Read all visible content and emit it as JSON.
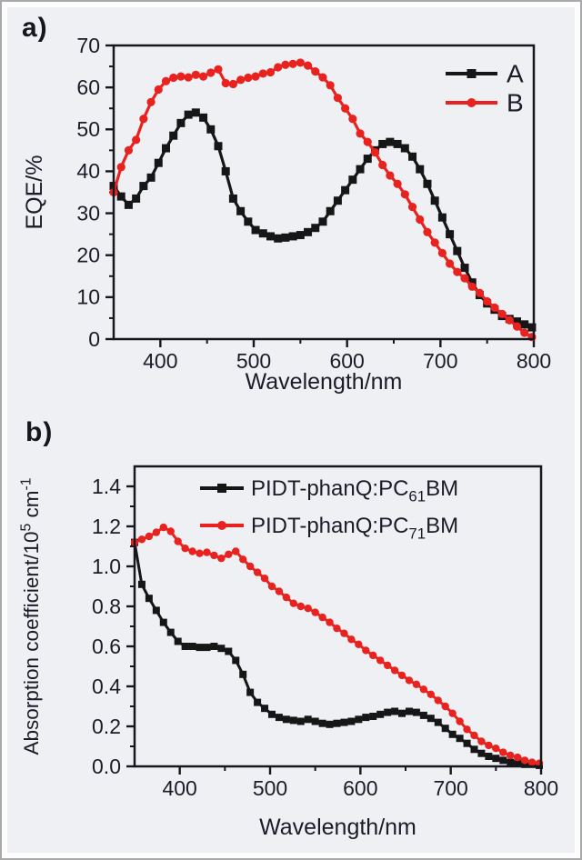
{
  "figure": {
    "panel_a_label": "a)",
    "panel_b_label": "b)"
  },
  "colors": {
    "background": "#eff0f4",
    "frame_border": "#a9a9a9",
    "axis": "#16161c",
    "text": "#1c1c28",
    "series_black": "#161616",
    "series_red": "#e8231f"
  },
  "chart_data": [
    {
      "type": "line",
      "panel": "a",
      "xlabel_parts": [
        {
          "t": "Wavelength/nm"
        }
      ],
      "ylabel_parts": [
        {
          "t": "EQE/%"
        }
      ],
      "xlim": [
        350,
        800
      ],
      "ylim": [
        0,
        70
      ],
      "xticks": [
        400,
        500,
        600,
        700,
        800
      ],
      "xtick_labels": [
        "400",
        "500",
        "600",
        "700",
        "800"
      ],
      "yticks": [
        0,
        10,
        20,
        30,
        40,
        50,
        60,
        70
      ],
      "ytick_labels": [
        "0",
        "10",
        "20",
        "30",
        "40",
        "50",
        "60",
        "70"
      ],
      "x_minor_step": 50,
      "y_minor_step": 5,
      "grid": false,
      "legend_position": "top-right",
      "series": [
        {
          "name": "A",
          "label_parts": [
            {
              "t": "A"
            }
          ],
          "color": "#161616",
          "marker": "square",
          "x": [
            350,
            358,
            366,
            374,
            382,
            390,
            398,
            406,
            414,
            422,
            430,
            438,
            446,
            454,
            462,
            470,
            478,
            486,
            494,
            502,
            510,
            518,
            526,
            534,
            542,
            550,
            558,
            566,
            574,
            582,
            590,
            598,
            606,
            614,
            622,
            630,
            638,
            646,
            654,
            662,
            670,
            678,
            686,
            694,
            702,
            710,
            718,
            726,
            734,
            742,
            750,
            758,
            766,
            774,
            782,
            790,
            798
          ],
          "y": [
            36.5,
            34,
            32,
            33.5,
            36.5,
            38.5,
            42,
            45.5,
            48.5,
            51.5,
            53.5,
            54,
            52.8,
            50,
            46,
            40,
            33.5,
            30.5,
            28,
            26,
            25.2,
            24.5,
            24,
            24.2,
            24.5,
            24.8,
            25.5,
            26.5,
            28,
            30.5,
            33,
            35.5,
            38,
            40.5,
            43,
            45,
            46.5,
            47,
            46.5,
            45.5,
            43.5,
            40.5,
            37,
            33,
            29,
            25,
            21,
            17,
            13.5,
            10.5,
            8.5,
            7,
            5.5,
            4.8,
            4.2,
            3.5,
            2.8
          ]
        },
        {
          "name": "B",
          "label_parts": [
            {
              "t": "B"
            }
          ],
          "color": "#e8231f",
          "marker": "circle",
          "x": [
            350,
            358,
            366,
            374,
            382,
            390,
            398,
            406,
            414,
            422,
            430,
            438,
            446,
            454,
            462,
            470,
            478,
            486,
            494,
            502,
            510,
            518,
            526,
            534,
            542,
            550,
            558,
            566,
            574,
            582,
            590,
            598,
            606,
            614,
            622,
            630,
            638,
            646,
            654,
            662,
            670,
            678,
            686,
            694,
            702,
            710,
            718,
            726,
            734,
            742,
            750,
            758,
            766,
            774,
            782,
            790,
            798
          ],
          "y": [
            35,
            41,
            45,
            47.5,
            52.5,
            56.5,
            59.5,
            61.5,
            62.3,
            62.6,
            62.4,
            63,
            62.6,
            63.5,
            64.3,
            61,
            60.8,
            61.8,
            62.3,
            62.6,
            63.3,
            63.6,
            64.8,
            65.4,
            65.6,
            65.9,
            65.2,
            63.8,
            62.4,
            60.5,
            57.5,
            55,
            52.5,
            49,
            47,
            44.5,
            41.5,
            39,
            37,
            34.5,
            31.5,
            28.5,
            25.5,
            23,
            20.5,
            18,
            16,
            14.5,
            12.5,
            11,
            9,
            7.5,
            6,
            4.5,
            3,
            1.5,
            0.5
          ]
        }
      ]
    },
    {
      "type": "line",
      "panel": "b",
      "xlabel_parts": [
        {
          "t": "Wavelength/nm"
        }
      ],
      "ylabel_parts": [
        {
          "t": "Absorption coefficient/10"
        },
        {
          "t": "5",
          "sup": true
        },
        {
          "t": " cm"
        },
        {
          "t": "-1",
          "sup": true
        }
      ],
      "xlim": [
        350,
        800
      ],
      "ylim": [
        0,
        1.5
      ],
      "xticks": [
        400,
        500,
        600,
        700,
        800
      ],
      "xtick_labels": [
        "400",
        "500",
        "600",
        "700",
        "800"
      ],
      "yticks": [
        0,
        0.2,
        0.4,
        0.6,
        0.8,
        1.0,
        1.2,
        1.4
      ],
      "ytick_labels": [
        "0.0",
        "0.2",
        "0.4",
        "0.6",
        "0.8",
        "1.0",
        "1.2",
        "1.4"
      ],
      "x_minor_step": 50,
      "y_minor_step": 0.1,
      "grid": false,
      "legend_position": "top-center",
      "series": [
        {
          "name": "PIDT-phanQ:PC61BM",
          "label_parts": [
            {
              "t": "PIDT-phanQ:PC"
            },
            {
              "t": "61",
              "sub": true
            },
            {
              "t": "BM"
            }
          ],
          "color": "#161616",
          "marker": "square",
          "x": [
            350,
            358,
            366,
            374,
            382,
            390,
            398,
            406,
            414,
            422,
            430,
            438,
            446,
            454,
            462,
            470,
            478,
            486,
            494,
            502,
            510,
            518,
            526,
            534,
            542,
            550,
            558,
            566,
            574,
            582,
            590,
            598,
            606,
            614,
            622,
            630,
            638,
            646,
            654,
            662,
            670,
            678,
            686,
            694,
            702,
            710,
            718,
            726,
            734,
            742,
            750,
            758,
            766,
            774,
            782,
            790,
            798
          ],
          "y": [
            1.12,
            0.91,
            0.84,
            0.78,
            0.72,
            0.67,
            0.625,
            0.6,
            0.6,
            0.595,
            0.595,
            0.6,
            0.59,
            0.575,
            0.53,
            0.46,
            0.37,
            0.32,
            0.29,
            0.26,
            0.245,
            0.235,
            0.23,
            0.225,
            0.235,
            0.225,
            0.215,
            0.21,
            0.215,
            0.22,
            0.225,
            0.235,
            0.245,
            0.25,
            0.26,
            0.27,
            0.275,
            0.265,
            0.275,
            0.27,
            0.255,
            0.24,
            0.22,
            0.19,
            0.16,
            0.14,
            0.115,
            0.085,
            0.065,
            0.05,
            0.04,
            0.03,
            0.02,
            0.015,
            0.01,
            0.01,
            0.005
          ]
        },
        {
          "name": "PIDT-phanQ:PC71BM",
          "label_parts": [
            {
              "t": "PIDT-phanQ:PC"
            },
            {
              "t": "71",
              "sub": true
            },
            {
              "t": "BM"
            }
          ],
          "color": "#e8231f",
          "marker": "circle",
          "x": [
            350,
            358,
            366,
            374,
            382,
            390,
            398,
            406,
            414,
            422,
            430,
            438,
            446,
            454,
            462,
            470,
            478,
            486,
            494,
            502,
            510,
            518,
            526,
            534,
            542,
            550,
            558,
            566,
            574,
            582,
            590,
            598,
            606,
            614,
            622,
            630,
            638,
            646,
            654,
            662,
            670,
            678,
            686,
            694,
            702,
            710,
            718,
            726,
            734,
            742,
            750,
            758,
            766,
            774,
            782,
            790,
            798
          ],
          "y": [
            1.12,
            1.135,
            1.15,
            1.17,
            1.195,
            1.175,
            1.125,
            1.09,
            1.075,
            1.065,
            1.07,
            1.055,
            1.04,
            1.06,
            1.075,
            1.035,
            1.0,
            0.97,
            0.94,
            0.9,
            0.875,
            0.845,
            0.815,
            0.8,
            0.79,
            0.77,
            0.745,
            0.72,
            0.69,
            0.665,
            0.635,
            0.61,
            0.58,
            0.555,
            0.53,
            0.505,
            0.48,
            0.455,
            0.43,
            0.41,
            0.385,
            0.36,
            0.33,
            0.3,
            0.265,
            0.225,
            0.185,
            0.155,
            0.125,
            0.105,
            0.09,
            0.07,
            0.055,
            0.045,
            0.03,
            0.02,
            0.015
          ]
        }
      ]
    }
  ]
}
